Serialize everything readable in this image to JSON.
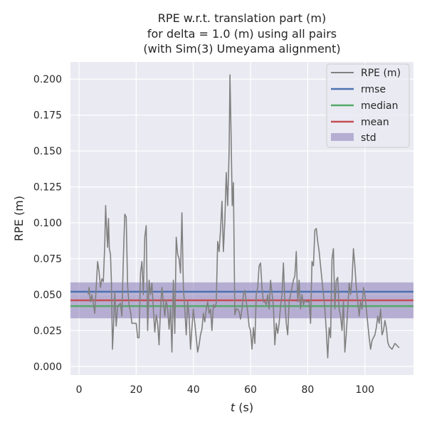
{
  "chart_data": {
    "type": "line",
    "title": [
      "RPE w.r.t. translation part (m)",
      "for delta = 1.0 (m) using all pairs",
      "(with Sim(3) Umeyama alignment)"
    ],
    "xlabel": "t (s)",
    "ylabel": "RPE (m)",
    "xlim": [
      -3,
      117
    ],
    "ylim": [
      -0.006,
      0.212
    ],
    "xticks": [
      0,
      20,
      40,
      60,
      80,
      100
    ],
    "yticks": [
      0.0,
      0.025,
      0.05,
      0.075,
      0.1,
      0.125,
      0.15,
      0.175,
      0.2
    ],
    "ytick_labels": [
      "0.000",
      "0.025",
      "0.050",
      "0.075",
      "0.100",
      "0.125",
      "0.150",
      "0.175",
      "0.200"
    ],
    "grid": true,
    "legend_position": "top-right",
    "series": [
      {
        "name": "RPE (m)",
        "color": "#808080",
        "points": [
          [
            3.2,
            0.05
          ],
          [
            3.5,
            0.055
          ],
          [
            4.0,
            0.045
          ],
          [
            4.5,
            0.05
          ],
          [
            5.0,
            0.044
          ],
          [
            5.5,
            0.037
          ],
          [
            6.0,
            0.055
          ],
          [
            6.5,
            0.073
          ],
          [
            7.0,
            0.066
          ],
          [
            7.5,
            0.055
          ],
          [
            8.0,
            0.061
          ],
          [
            8.5,
            0.059
          ],
          [
            9.0,
            0.085
          ],
          [
            9.3,
            0.112
          ],
          [
            9.6,
            0.098
          ],
          [
            10.0,
            0.083
          ],
          [
            10.3,
            0.103
          ],
          [
            10.6,
            0.082
          ],
          [
            11.0,
            0.078
          ],
          [
            11.3,
            0.061
          ],
          [
            11.7,
            0.012
          ],
          [
            12.1,
            0.03
          ],
          [
            12.5,
            0.052
          ],
          [
            13.0,
            0.028
          ],
          [
            13.5,
            0.042
          ],
          [
            14.0,
            0.043
          ],
          [
            14.5,
            0.044
          ],
          [
            15.0,
            0.035
          ],
          [
            15.5,
            0.075
          ],
          [
            16.0,
            0.106
          ],
          [
            16.5,
            0.104
          ],
          [
            17.0,
            0.056
          ],
          [
            17.5,
            0.043
          ],
          [
            18.0,
            0.038
          ],
          [
            18.5,
            0.03
          ],
          [
            19.0,
            0.03
          ],
          [
            20.0,
            0.03
          ],
          [
            20.5,
            0.02
          ],
          [
            21.0,
            0.02
          ],
          [
            21.5,
            0.065
          ],
          [
            22.0,
            0.073
          ],
          [
            22.5,
            0.05
          ],
          [
            23.0,
            0.09
          ],
          [
            23.5,
            0.098
          ],
          [
            24.0,
            0.025
          ],
          [
            24.5,
            0.06
          ],
          [
            25.0,
            0.05
          ],
          [
            25.5,
            0.058
          ],
          [
            26.0,
            0.04
          ],
          [
            26.5,
            0.024
          ],
          [
            27.0,
            0.036
          ],
          [
            27.5,
            0.03
          ],
          [
            28.0,
            0.015
          ],
          [
            28.5,
            0.04
          ],
          [
            29.0,
            0.055
          ],
          [
            29.5,
            0.045
          ],
          [
            30.0,
            0.035
          ],
          [
            30.5,
            0.046
          ],
          [
            31.0,
            0.04
          ],
          [
            31.5,
            0.026
          ],
          [
            32.0,
            0.041
          ],
          [
            32.5,
            0.01
          ],
          [
            33.0,
            0.06
          ],
          [
            33.5,
            0.023
          ],
          [
            34.0,
            0.09
          ],
          [
            34.5,
            0.078
          ],
          [
            35.0,
            0.075
          ],
          [
            35.5,
            0.065
          ],
          [
            36.0,
            0.107
          ],
          [
            36.5,
            0.055
          ],
          [
            37.0,
            0.04
          ],
          [
            37.5,
            0.022
          ],
          [
            38.0,
            0.045
          ],
          [
            38.5,
            0.035
          ],
          [
            39.0,
            0.012
          ],
          [
            39.5,
            0.027
          ],
          [
            40.0,
            0.04
          ],
          [
            40.5,
            0.03
          ],
          [
            41.0,
            0.02
          ],
          [
            41.5,
            0.01
          ],
          [
            42.0,
            0.015
          ],
          [
            42.5,
            0.022
          ],
          [
            43.0,
            0.026
          ],
          [
            43.5,
            0.037
          ],
          [
            44.0,
            0.031
          ],
          [
            44.5,
            0.04
          ],
          [
            45.0,
            0.045
          ],
          [
            45.5,
            0.037
          ],
          [
            46.0,
            0.04
          ],
          [
            46.5,
            0.025
          ],
          [
            47.0,
            0.043
          ],
          [
            47.5,
            0.041
          ],
          [
            48.0,
            0.044
          ],
          [
            48.5,
            0.087
          ],
          [
            49.0,
            0.08
          ],
          [
            49.5,
            0.095
          ],
          [
            50.0,
            0.115
          ],
          [
            50.5,
            0.08
          ],
          [
            51.0,
            0.101
          ],
          [
            51.5,
            0.135
          ],
          [
            52.0,
            0.112
          ],
          [
            52.5,
            0.15
          ],
          [
            52.8,
            0.203
          ],
          [
            53.2,
            0.16
          ],
          [
            53.6,
            0.112
          ],
          [
            54.0,
            0.128
          ],
          [
            54.5,
            0.036
          ],
          [
            55.0,
            0.04
          ],
          [
            55.5,
            0.04
          ],
          [
            56.0,
            0.038
          ],
          [
            56.5,
            0.033
          ],
          [
            57.0,
            0.04
          ],
          [
            57.5,
            0.05
          ],
          [
            58.0,
            0.053
          ],
          [
            58.5,
            0.045
          ],
          [
            59.0,
            0.038
          ],
          [
            59.5,
            0.028
          ],
          [
            60.0,
            0.025
          ],
          [
            60.5,
            0.012
          ],
          [
            61.0,
            0.027
          ],
          [
            61.5,
            0.016
          ],
          [
            62.0,
            0.05
          ],
          [
            62.5,
            0.055
          ],
          [
            63.0,
            0.07
          ],
          [
            63.5,
            0.072
          ],
          [
            64.0,
            0.055
          ],
          [
            64.5,
            0.045
          ],
          [
            65.0,
            0.045
          ],
          [
            65.5,
            0.043
          ],
          [
            66.0,
            0.05
          ],
          [
            66.5,
            0.04
          ],
          [
            67.0,
            0.06
          ],
          [
            67.5,
            0.051
          ],
          [
            68.0,
            0.042
          ],
          [
            68.5,
            0.015
          ],
          [
            69.0,
            0.03
          ],
          [
            69.5,
            0.023
          ],
          [
            70.0,
            0.03
          ],
          [
            70.5,
            0.042
          ],
          [
            71.0,
            0.05
          ],
          [
            71.5,
            0.072
          ],
          [
            72.0,
            0.045
          ],
          [
            72.5,
            0.03
          ],
          [
            73.0,
            0.022
          ],
          [
            73.5,
            0.045
          ],
          [
            74.0,
            0.05
          ],
          [
            74.5,
            0.055
          ],
          [
            75.0,
            0.06
          ],
          [
            75.5,
            0.063
          ],
          [
            76.0,
            0.08
          ],
          [
            76.5,
            0.045
          ],
          [
            77.0,
            0.06
          ],
          [
            77.5,
            0.04
          ],
          [
            78.0,
            0.05
          ],
          [
            78.5,
            0.043
          ],
          [
            79.0,
            0.046
          ],
          [
            79.5,
            0.045
          ],
          [
            80.0,
            0.045
          ],
          [
            80.5,
            0.045
          ],
          [
            81.0,
            0.03
          ],
          [
            81.5,
            0.073
          ],
          [
            82.0,
            0.07
          ],
          [
            82.5,
            0.095
          ],
          [
            83.0,
            0.096
          ],
          [
            83.5,
            0.087
          ],
          [
            84.0,
            0.08
          ],
          [
            84.5,
            0.07
          ],
          [
            85.0,
            0.06
          ],
          [
            85.5,
            0.05
          ],
          [
            86.0,
            0.04
          ],
          [
            86.5,
            0.025
          ],
          [
            87.0,
            0.006
          ],
          [
            87.5,
            0.027
          ],
          [
            88.0,
            0.02
          ],
          [
            88.5,
            0.075
          ],
          [
            89.0,
            0.082
          ],
          [
            89.5,
            0.04
          ],
          [
            90.0,
            0.06
          ],
          [
            90.5,
            0.062
          ],
          [
            91.0,
            0.04
          ],
          [
            91.5,
            0.035
          ],
          [
            92.0,
            0.025
          ],
          [
            92.5,
            0.045
          ],
          [
            93.0,
            0.01
          ],
          [
            93.5,
            0.023
          ],
          [
            94.0,
            0.04
          ],
          [
            94.5,
            0.058
          ],
          [
            95.0,
            0.05
          ],
          [
            95.5,
            0.06
          ],
          [
            96.0,
            0.082
          ],
          [
            96.5,
            0.07
          ],
          [
            97.0,
            0.055
          ],
          [
            97.5,
            0.045
          ],
          [
            98.0,
            0.035
          ],
          [
            98.5,
            0.045
          ],
          [
            99.0,
            0.04
          ],
          [
            99.5,
            0.055
          ],
          [
            100.0,
            0.05
          ],
          [
            100.5,
            0.04
          ],
          [
            101.0,
            0.03
          ],
          [
            101.5,
            0.02
          ],
          [
            102.0,
            0.012
          ],
          [
            102.5,
            0.018
          ],
          [
            103.0,
            0.02
          ],
          [
            103.5,
            0.022
          ],
          [
            104.0,
            0.027
          ],
          [
            104.5,
            0.035
          ],
          [
            105.0,
            0.03
          ],
          [
            105.5,
            0.04
          ],
          [
            106.0,
            0.022
          ],
          [
            106.5,
            0.025
          ],
          [
            107.0,
            0.032
          ],
          [
            107.5,
            0.027
          ],
          [
            108.0,
            0.017
          ],
          [
            108.5,
            0.014
          ],
          [
            109.0,
            0.013
          ],
          [
            109.5,
            0.012
          ],
          [
            110.0,
            0.014
          ],
          [
            110.5,
            0.016
          ],
          [
            111.0,
            0.015
          ],
          [
            111.5,
            0.014
          ],
          [
            112.0,
            0.013
          ]
        ]
      },
      {
        "name": "rmse",
        "color": "#4c72b0",
        "value": 0.052
      },
      {
        "name": "median",
        "color": "#55a868",
        "value": 0.042
      },
      {
        "name": "mean",
        "color": "#c44e52",
        "value": 0.046
      },
      {
        "name": "std",
        "color": "#8172b2",
        "range": [
          0.0335,
          0.0585
        ]
      }
    ]
  }
}
